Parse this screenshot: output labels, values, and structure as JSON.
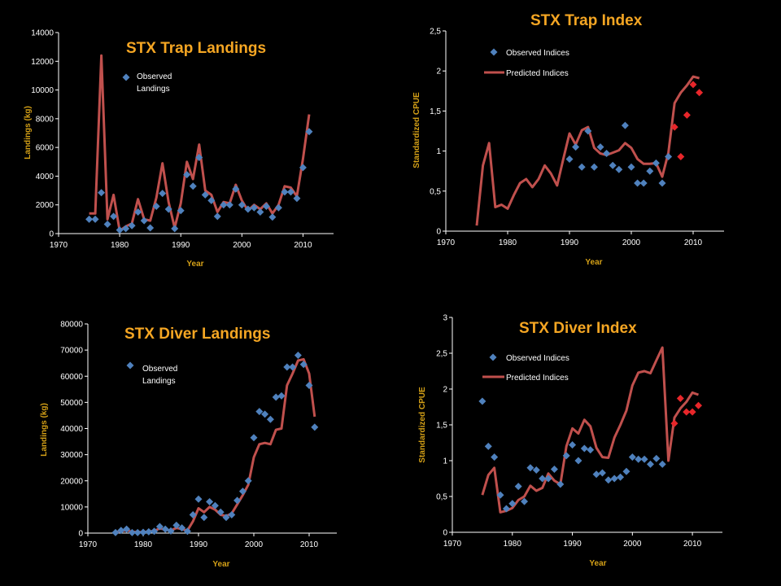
{
  "colors": {
    "background": "#000000",
    "observed": "#4f81bd",
    "observed_recent": "#e8262a",
    "predicted": "#c0504d",
    "title": "#f5a623",
    "axis_title": "#d4a017",
    "text": "#ffffff"
  },
  "chart_data": [
    {
      "id": "trap_landings",
      "type": "line",
      "title": "STX Trap Landings",
      "xlabel": "Year",
      "ylabel": "Landings (kg)",
      "xlim": [
        1970,
        2015
      ],
      "ylim": [
        0,
        14000
      ],
      "xticks": [
        1970,
        1980,
        1990,
        2000,
        2010
      ],
      "yticks": [
        0,
        2000,
        4000,
        6000,
        8000,
        10000,
        12000,
        14000
      ],
      "ytick_labels": [
        "0",
        "2000",
        "4000",
        "6000",
        "8000",
        "10000",
        "12000",
        "14000"
      ],
      "legend": [
        "Observed Landings"
      ],
      "observed": {
        "x": [
          1975,
          1976,
          1977,
          1978,
          1979,
          1980,
          1981,
          1982,
          1983,
          1984,
          1985,
          1986,
          1987,
          1988,
          1989,
          1990,
          1991,
          1992,
          1993,
          1994,
          1995,
          1996,
          1997,
          1998,
          1999,
          2000,
          2001,
          2002,
          2003,
          2004,
          2005,
          2006,
          2007,
          2008,
          2009,
          2010,
          2011
        ],
        "y": [
          1000,
          1000,
          2850,
          650,
          1200,
          250,
          350,
          550,
          1500,
          900,
          400,
          1900,
          2800,
          1700,
          350,
          1600,
          4100,
          3300,
          5300,
          2700,
          2300,
          1200,
          2000,
          2000,
          3100,
          2000,
          1700,
          1800,
          1500,
          1900,
          1150,
          1800,
          2900,
          2900,
          2450,
          4600,
          7100
        ]
      },
      "predicted": {
        "x": [
          1975,
          1976,
          1977,
          1978,
          1979,
          1980,
          1981,
          1982,
          1983,
          1984,
          1985,
          1986,
          1987,
          1988,
          1989,
          1990,
          1991,
          1992,
          1993,
          1994,
          1995,
          1996,
          1997,
          1998,
          1999,
          2000,
          2001,
          2002,
          2003,
          2004,
          2005,
          2006,
          2007,
          2008,
          2009,
          2010,
          2011
        ],
        "y": [
          1400,
          1400,
          12400,
          1000,
          2700,
          200,
          500,
          700,
          2400,
          1000,
          900,
          2500,
          4900,
          2200,
          400,
          2100,
          5000,
          3800,
          6200,
          3000,
          2700,
          1500,
          2200,
          2100,
          3400,
          2300,
          1600,
          2000,
          1700,
          2100,
          1400,
          2000,
          3300,
          3200,
          2600,
          5200,
          8300
        ]
      }
    },
    {
      "id": "trap_index",
      "type": "line",
      "title": "STX Trap Index",
      "xlabel": "Year",
      "ylabel": "Standardized CPUE",
      "xlim": [
        1970,
        2015
      ],
      "ylim": [
        0,
        2.5
      ],
      "xticks": [
        1970,
        1980,
        1990,
        2000,
        2010
      ],
      "yticks": [
        0,
        0.5,
        1,
        1.5,
        2,
        2.5
      ],
      "ytick_labels": [
        "0",
        "0,5",
        "1",
        "1,5",
        "2",
        "2,5"
      ],
      "legend": [
        "Observed Indices",
        "Predicted Indices"
      ],
      "observed": {
        "x": [
          1990,
          1991,
          1992,
          1993,
          1994,
          1995,
          1996,
          1997,
          1998,
          1999,
          2000,
          2001,
          2002,
          2003,
          2004,
          2005,
          2006
        ],
        "y": [
          0.9,
          1.05,
          0.8,
          1.25,
          0.8,
          1.05,
          0.97,
          0.82,
          0.77,
          1.32,
          0.8,
          0.6,
          0.6,
          0.75,
          0.85,
          0.6,
          0.93
        ]
      },
      "observed_recent": {
        "x": [
          2007,
          2008,
          2009,
          2010,
          2011
        ],
        "y": [
          1.3,
          0.93,
          1.45,
          1.83,
          1.73
        ]
      },
      "predicted": {
        "x": [
          1975,
          1976,
          1977,
          1978,
          1979,
          1980,
          1981,
          1982,
          1983,
          1984,
          1985,
          1986,
          1987,
          1988,
          1989,
          1990,
          1991,
          1992,
          1993,
          1994,
          1995,
          1996,
          1997,
          1998,
          1999,
          2000,
          2001,
          2002,
          2003,
          2004,
          2005,
          2006,
          2007,
          2008,
          2009,
          2010,
          2011
        ],
        "y": [
          0.07,
          0.82,
          1.1,
          0.3,
          0.33,
          0.28,
          0.45,
          0.6,
          0.65,
          0.55,
          0.65,
          0.82,
          0.72,
          0.57,
          0.9,
          1.22,
          1.08,
          1.26,
          1.3,
          1.04,
          0.97,
          0.95,
          0.98,
          1.01,
          1.1,
          1.04,
          0.9,
          0.84,
          0.84,
          0.85,
          0.68,
          0.98,
          1.6,
          1.73,
          1.82,
          1.93,
          1.91
        ]
      }
    },
    {
      "id": "diver_landings",
      "type": "line",
      "title": "STX Diver Landings",
      "xlabel": "Year",
      "ylabel": "Landings (kg)",
      "xlim": [
        1970,
        2015
      ],
      "ylim": [
        0,
        80000
      ],
      "xticks": [
        1970,
        1980,
        1990,
        2000,
        2010
      ],
      "yticks": [
        0,
        10000,
        20000,
        30000,
        40000,
        50000,
        60000,
        70000,
        80000
      ],
      "ytick_labels": [
        "0",
        "10000",
        "20000",
        "30000",
        "40000",
        "50000",
        "60000",
        "70000",
        "80000"
      ],
      "legend": [
        "Observed Landings"
      ],
      "observed": {
        "x": [
          1975,
          1976,
          1977,
          1978,
          1979,
          1980,
          1981,
          1982,
          1983,
          1984,
          1985,
          1986,
          1987,
          1988,
          1989,
          1990,
          1991,
          1992,
          1993,
          1994,
          1995,
          1996,
          1997,
          1998,
          1999,
          2000,
          2001,
          2002,
          2003,
          2004,
          2005,
          2006,
          2007,
          2008,
          2009,
          2010,
          2011
        ],
        "y": [
          200,
          1000,
          1500,
          200,
          200,
          300,
          500,
          700,
          2500,
          1500,
          800,
          3000,
          2000,
          700,
          7000,
          13000,
          6000,
          12000,
          10500,
          8000,
          6000,
          7000,
          12500,
          16000,
          20000,
          36500,
          46500,
          45500,
          43500,
          52000,
          52500,
          63500,
          63500,
          68000,
          64500,
          56500,
          40500
        ]
      },
      "predicted": {
        "x": [
          1975,
          1976,
          1977,
          1978,
          1979,
          1980,
          1981,
          1982,
          1983,
          1984,
          1985,
          1986,
          1987,
          1988,
          1989,
          1990,
          1991,
          1992,
          1993,
          1994,
          1995,
          1996,
          1997,
          1998,
          1999,
          2000,
          2001,
          2002,
          2003,
          2004,
          2005,
          2006,
          2007,
          2008,
          2009,
          2010,
          2011
        ],
        "y": [
          300,
          700,
          1100,
          500,
          400,
          400,
          600,
          800,
          1800,
          1300,
          1000,
          2000,
          1500,
          1000,
          4500,
          9500,
          8000,
          10000,
          9000,
          7000,
          6500,
          7500,
          11000,
          14500,
          18500,
          29000,
          34000,
          34500,
          34000,
          39500,
          40000,
          56500,
          61000,
          66000,
          66500,
          61000,
          44500
        ]
      }
    },
    {
      "id": "diver_index",
      "type": "line",
      "title": "STX Diver Index",
      "xlabel": "Year",
      "ylabel": "Standardized CPUE",
      "xlim": [
        1970,
        2015
      ],
      "ylim": [
        0,
        3
      ],
      "xticks": [
        1970,
        1980,
        1990,
        2000,
        2010
      ],
      "yticks": [
        0,
        0.5,
        1,
        1.5,
        2,
        2.5,
        3
      ],
      "ytick_labels": [
        "0",
        "0,5",
        "1",
        "1,5",
        "2",
        "2,5",
        "3"
      ],
      "legend": [
        "Observed Indices",
        "Predicted Indices"
      ],
      "observed": {
        "x": [
          1975,
          1976,
          1977,
          1978,
          1979,
          1980,
          1981,
          1982,
          1983,
          1984,
          1985,
          1986,
          1987,
          1988,
          1989,
          1990,
          1991,
          1992,
          1993,
          1994,
          1995,
          1996,
          1997,
          1998,
          1999,
          2000,
          2001,
          2002,
          2003,
          2004,
          2005
        ],
        "y": [
          1.83,
          1.2,
          1.05,
          0.52,
          0.33,
          0.4,
          0.64,
          0.43,
          0.9,
          0.87,
          0.75,
          0.75,
          0.88,
          0.67,
          1.07,
          1.22,
          1.0,
          1.17,
          1.15,
          0.81,
          0.83,
          0.73,
          0.75,
          0.77,
          0.85,
          1.05,
          1.02,
          1.02,
          0.95,
          1.03,
          0.95
        ]
      },
      "observed_recent": {
        "x": [
          2007,
          2008,
          2009,
          2010,
          2011
        ],
        "y": [
          1.52,
          1.87,
          1.68,
          1.68,
          1.77
        ]
      },
      "predicted": {
        "x": [
          1975,
          1976,
          1977,
          1978,
          1979,
          1980,
          1981,
          1982,
          1983,
          1984,
          1985,
          1986,
          1987,
          1988,
          1989,
          1990,
          1991,
          1992,
          1993,
          1994,
          1995,
          1996,
          1997,
          1998,
          1999,
          2000,
          2001,
          2002,
          2003,
          2004,
          2005,
          2006,
          2007,
          2008,
          2009,
          2010,
          2011
        ],
        "y": [
          0.52,
          0.8,
          0.9,
          0.28,
          0.3,
          0.34,
          0.45,
          0.5,
          0.65,
          0.58,
          0.62,
          0.82,
          0.72,
          0.67,
          1.2,
          1.45,
          1.38,
          1.57,
          1.48,
          1.18,
          1.05,
          1.04,
          1.32,
          1.5,
          1.7,
          2.05,
          2.23,
          2.25,
          2.22,
          2.4,
          2.58,
          1.0,
          1.6,
          1.73,
          1.82,
          1.95,
          1.92
        ]
      }
    }
  ]
}
